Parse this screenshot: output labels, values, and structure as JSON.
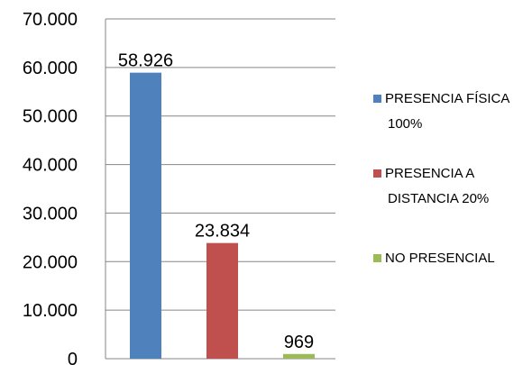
{
  "chart_data": {
    "type": "bar",
    "categories": [
      "PRESENCIA FÍSICA 100%",
      "PRESENCIA A DISTANCIA 20%",
      "NO PRESENCIAL"
    ],
    "values": [
      58926,
      23834,
      969
    ],
    "data_labels": [
      "58.926",
      "23.834",
      "969"
    ],
    "colors": [
      "#4F81BD",
      "#C0504D",
      "#9BBB59"
    ],
    "legend": [
      {
        "lines": [
          "PRESENCIA FÍSICA",
          "100%"
        ]
      },
      {
        "lines": [
          "PRESENCIA A",
          "DISTANCIA 20%"
        ]
      },
      {
        "lines": [
          "NO PRESENCIAL"
        ]
      }
    ],
    "legend_position": "right",
    "y_ticks": [
      {
        "value": 0,
        "label": "0"
      },
      {
        "value": 10000,
        "label": "10.000"
      },
      {
        "value": 20000,
        "label": "20.000"
      },
      {
        "value": 30000,
        "label": "30.000"
      },
      {
        "value": 40000,
        "label": "40.000"
      },
      {
        "value": 50000,
        "label": "50.000"
      },
      {
        "value": 60000,
        "label": "60.000"
      },
      {
        "value": 70000,
        "label": "70.000"
      }
    ],
    "ylim": [
      0,
      70000
    ],
    "grid": true,
    "title": "",
    "xlabel": "",
    "ylabel": ""
  }
}
